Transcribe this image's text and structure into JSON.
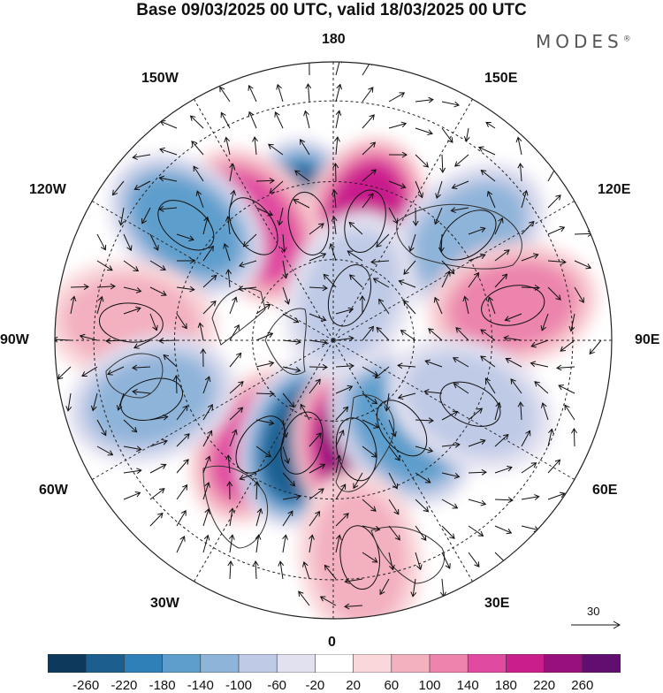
{
  "title": "Base 09/03/2025 00 UTC, valid 18/03/2025 00 UTC",
  "brand": {
    "name": "MODES",
    "mark": "®"
  },
  "map": {
    "projection": "north polar stereographic",
    "longitude_labels": {
      "top": "180",
      "bottom": "0",
      "left": "90W",
      "right": "90E",
      "upper_left": "150W",
      "upper_right": "150E",
      "left_upper": "120W",
      "right_upper": "120E",
      "left_lower": "60W",
      "right_lower": "60E",
      "lower_left": "30W",
      "lower_right": "30E"
    },
    "reference_vector": {
      "label": "30"
    },
    "colors": {
      "land_outline": "#333333",
      "grid": "#222222",
      "neutral": "#ffffff"
    },
    "anomaly_centers": [
      {
        "sign": "negative",
        "value": -220,
        "lon": -168,
        "colat": 30
      },
      {
        "sign": "positive",
        "value": 190,
        "lon": 165,
        "colat": 31
      },
      {
        "sign": "positive",
        "value": 150,
        "lon": -145,
        "colat": 35
      },
      {
        "sign": "negative",
        "value": -120,
        "lon": -128,
        "colat": 47
      },
      {
        "sign": "negative",
        "value": -90,
        "lon": 128,
        "colat": 43
      },
      {
        "sign": "positive",
        "value": 110,
        "lon": 101,
        "colat": 46
      },
      {
        "sign": "positive",
        "value": 60,
        "lon": -95,
        "colat": 51
      },
      {
        "sign": "positive",
        "value": 150,
        "lon": -35,
        "colat": 32
      },
      {
        "sign": "negative",
        "value": -200,
        "lon": -17,
        "colat": 27
      },
      {
        "sign": "positive",
        "value": 200,
        "lon": 12,
        "colat": 28
      },
      {
        "sign": "negative",
        "value": -130,
        "lon": 38,
        "colat": 28
      },
      {
        "sign": "negative",
        "value": -110,
        "lon": -72,
        "colat": 48
      },
      {
        "sign": "negative",
        "value": -60,
        "lon": 65,
        "colat": 38
      },
      {
        "sign": "positive",
        "value": 70,
        "lon": 7,
        "colat": 55
      },
      {
        "sign": "negative",
        "value": -40,
        "lon": 160,
        "colat": 12
      }
    ]
  },
  "colorbar": {
    "ticks": [
      "-260",
      "-220",
      "-180",
      "-140",
      "-100",
      "-60",
      "-20",
      "20",
      "60",
      "100",
      "140",
      "180",
      "220",
      "260"
    ],
    "colors": [
      "#0d3a5c",
      "#1c5f8f",
      "#2f80b8",
      "#5d9ecc",
      "#8fb4d9",
      "#bfcae6",
      "#e2e1f0",
      "#ffffff",
      "#f9d7da",
      "#f3b0bf",
      "#ec84ad",
      "#e04aa0",
      "#c91f8c",
      "#98107c",
      "#620d70"
    ]
  }
}
